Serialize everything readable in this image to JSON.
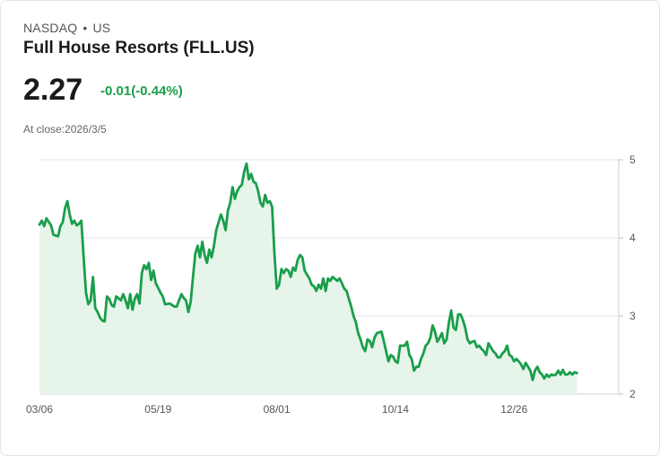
{
  "header": {
    "exchange": "NASDAQ",
    "separator": "•",
    "market": "US",
    "company": "Full House Resorts (FLL.US)",
    "price": "2.27",
    "change": "-0.01(-0.44%)",
    "at_close": "At close:2026/3/5"
  },
  "colors": {
    "line": "#1a9e4b",
    "fill": "#e6f4ea",
    "change": "#1a9e4b",
    "grid": "#e6e6e6"
  },
  "chart_data": {
    "type": "area",
    "title": "Full House Resorts (FLL.US)",
    "xlabel": "",
    "ylabel": "",
    "ylim": [
      2,
      5
    ],
    "yticks": [
      "5",
      "4",
      "3",
      "2"
    ],
    "xticks": [
      {
        "label": "03/06",
        "index": 0
      },
      {
        "label": "05/19",
        "index": 51
      },
      {
        "label": "08/01",
        "index": 102
      },
      {
        "label": "10/14",
        "index": 153
      },
      {
        "label": "12/26",
        "index": 204
      }
    ],
    "n_days": 250,
    "points": [
      [
        0,
        4.17
      ],
      [
        1,
        4.22
      ],
      [
        2,
        4.15
      ],
      [
        3,
        4.25
      ],
      [
        5,
        4.16
      ],
      [
        6,
        4.04
      ],
      [
        8,
        4.02
      ],
      [
        9,
        4.15
      ],
      [
        10,
        4.2
      ],
      [
        11,
        4.38
      ],
      [
        12,
        4.47
      ],
      [
        13,
        4.3
      ],
      [
        14,
        4.18
      ],
      [
        15,
        4.22
      ],
      [
        16,
        4.16
      ],
      [
        17,
        4.18
      ],
      [
        18,
        4.22
      ],
      [
        19,
        3.75
      ],
      [
        20,
        3.3
      ],
      [
        21,
        3.15
      ],
      [
        22,
        3.2
      ],
      [
        23,
        3.5
      ],
      [
        24,
        3.1
      ],
      [
        25,
        3.05
      ],
      [
        26,
        2.98
      ],
      [
        27,
        2.94
      ],
      [
        28,
        2.93
      ],
      [
        29,
        3.25
      ],
      [
        30,
        3.22
      ],
      [
        31,
        3.14
      ],
      [
        32,
        3.12
      ],
      [
        33,
        3.25
      ],
      [
        35,
        3.2
      ],
      [
        36,
        3.28
      ],
      [
        37,
        3.2
      ],
      [
        38,
        3.1
      ],
      [
        39,
        3.28
      ],
      [
        40,
        3.08
      ],
      [
        41,
        3.22
      ],
      [
        42,
        3.28
      ],
      [
        43,
        3.16
      ],
      [
        44,
        3.55
      ],
      [
        45,
        3.65
      ],
      [
        46,
        3.6
      ],
      [
        47,
        3.68
      ],
      [
        48,
        3.46
      ],
      [
        49,
        3.58
      ],
      [
        50,
        3.42
      ],
      [
        51,
        3.36
      ],
      [
        52,
        3.3
      ],
      [
        53,
        3.25
      ],
      [
        54,
        3.15
      ],
      [
        56,
        3.16
      ],
      [
        58,
        3.12
      ],
      [
        59,
        3.12
      ],
      [
        60,
        3.2
      ],
      [
        61,
        3.28
      ],
      [
        62,
        3.23
      ],
      [
        63,
        3.2
      ],
      [
        64,
        3.05
      ],
      [
        65,
        3.18
      ],
      [
        66,
        3.5
      ],
      [
        67,
        3.8
      ],
      [
        68,
        3.9
      ],
      [
        69,
        3.75
      ],
      [
        70,
        3.95
      ],
      [
        71,
        3.78
      ],
      [
        72,
        3.68
      ],
      [
        73,
        3.85
      ],
      [
        74,
        3.75
      ],
      [
        75,
        3.9
      ],
      [
        76,
        4.1
      ],
      [
        77,
        4.2
      ],
      [
        78,
        4.3
      ],
      [
        79,
        4.22
      ],
      [
        80,
        4.1
      ],
      [
        81,
        4.35
      ],
      [
        82,
        4.45
      ],
      [
        83,
        4.65
      ],
      [
        84,
        4.5
      ],
      [
        85,
        4.6
      ],
      [
        86,
        4.65
      ],
      [
        87,
        4.68
      ],
      [
        88,
        4.85
      ],
      [
        89,
        4.95
      ],
      [
        90,
        4.75
      ],
      [
        91,
        4.82
      ],
      [
        92,
        4.72
      ],
      [
        93,
        4.7
      ],
      [
        94,
        4.6
      ],
      [
        95,
        4.45
      ],
      [
        96,
        4.4
      ],
      [
        97,
        4.55
      ],
      [
        98,
        4.45
      ],
      [
        99,
        4.47
      ],
      [
        100,
        4.4
      ],
      [
        101,
        3.8
      ],
      [
        102,
        3.35
      ],
      [
        103,
        3.4
      ],
      [
        104,
        3.6
      ],
      [
        105,
        3.55
      ],
      [
        106,
        3.6
      ],
      [
        107,
        3.58
      ],
      [
        108,
        3.5
      ],
      [
        109,
        3.62
      ],
      [
        110,
        3.58
      ],
      [
        111,
        3.72
      ],
      [
        112,
        3.78
      ],
      [
        113,
        3.75
      ],
      [
        114,
        3.58
      ],
      [
        116,
        3.48
      ],
      [
        117,
        3.4
      ],
      [
        118,
        3.38
      ],
      [
        119,
        3.32
      ],
      [
        120,
        3.4
      ],
      [
        121,
        3.35
      ],
      [
        122,
        3.48
      ],
      [
        123,
        3.32
      ],
      [
        124,
        3.48
      ],
      [
        125,
        3.45
      ],
      [
        126,
        3.5
      ],
      [
        128,
        3.45
      ],
      [
        129,
        3.48
      ],
      [
        130,
        3.42
      ],
      [
        131,
        3.35
      ],
      [
        132,
        3.32
      ],
      [
        133,
        3.22
      ],
      [
        134,
        3.12
      ],
      [
        135,
        3.0
      ],
      [
        136,
        2.92
      ],
      [
        137,
        2.78
      ],
      [
        138,
        2.7
      ],
      [
        139,
        2.6
      ],
      [
        140,
        2.55
      ],
      [
        141,
        2.7
      ],
      [
        142,
        2.68
      ],
      [
        143,
        2.6
      ],
      [
        144,
        2.72
      ],
      [
        145,
        2.78
      ],
      [
        147,
        2.8
      ],
      [
        148,
        2.68
      ],
      [
        149,
        2.55
      ],
      [
        150,
        2.42
      ],
      [
        151,
        2.5
      ],
      [
        152,
        2.48
      ],
      [
        153,
        2.42
      ],
      [
        154,
        2.4
      ],
      [
        155,
        2.62
      ],
      [
        157,
        2.62
      ],
      [
        158,
        2.67
      ],
      [
        159,
        2.5
      ],
      [
        160,
        2.45
      ],
      [
        161,
        2.3
      ],
      [
        162,
        2.35
      ],
      [
        163,
        2.35
      ],
      [
        164,
        2.45
      ],
      [
        165,
        2.52
      ],
      [
        166,
        2.62
      ],
      [
        167,
        2.65
      ],
      [
        168,
        2.72
      ],
      [
        169,
        2.88
      ],
      [
        170,
        2.8
      ],
      [
        171,
        2.67
      ],
      [
        172,
        2.72
      ],
      [
        173,
        2.78
      ],
      [
        174,
        2.65
      ],
      [
        175,
        2.7
      ],
      [
        176,
        2.92
      ],
      [
        177,
        3.07
      ],
      [
        178,
        2.85
      ],
      [
        179,
        2.82
      ],
      [
        180,
        3.02
      ],
      [
        181,
        3.02
      ],
      [
        182,
        2.95
      ],
      [
        183,
        2.85
      ],
      [
        184,
        2.7
      ],
      [
        185,
        2.65
      ],
      [
        186,
        2.67
      ],
      [
        187,
        2.68
      ],
      [
        188,
        2.6
      ],
      [
        189,
        2.62
      ],
      [
        190,
        2.58
      ],
      [
        191,
        2.55
      ],
      [
        192,
        2.5
      ],
      [
        193,
        2.65
      ],
      [
        194,
        2.6
      ],
      [
        195,
        2.55
      ],
      [
        196,
        2.52
      ],
      [
        197,
        2.47
      ],
      [
        198,
        2.47
      ],
      [
        199,
        2.52
      ],
      [
        200,
        2.55
      ],
      [
        201,
        2.62
      ],
      [
        202,
        2.5
      ],
      [
        203,
        2.48
      ],
      [
        204,
        2.42
      ],
      [
        205,
        2.45
      ],
      [
        206,
        2.42
      ],
      [
        207,
        2.38
      ],
      [
        208,
        2.32
      ],
      [
        209,
        2.4
      ],
      [
        210,
        2.35
      ],
      [
        211,
        2.3
      ],
      [
        212,
        2.18
      ],
      [
        213,
        2.3
      ],
      [
        214,
        2.35
      ],
      [
        215,
        2.28
      ],
      [
        216,
        2.25
      ],
      [
        217,
        2.2
      ],
      [
        218,
        2.25
      ],
      [
        219,
        2.22
      ],
      [
        220,
        2.25
      ],
      [
        221,
        2.24
      ],
      [
        222,
        2.25
      ],
      [
        223,
        2.3
      ],
      [
        224,
        2.25
      ],
      [
        225,
        2.31
      ],
      [
        226,
        2.25
      ],
      [
        227,
        2.25
      ],
      [
        228,
        2.28
      ],
      [
        229,
        2.25
      ],
      [
        230,
        2.28
      ],
      [
        231,
        2.27
      ]
    ]
  }
}
